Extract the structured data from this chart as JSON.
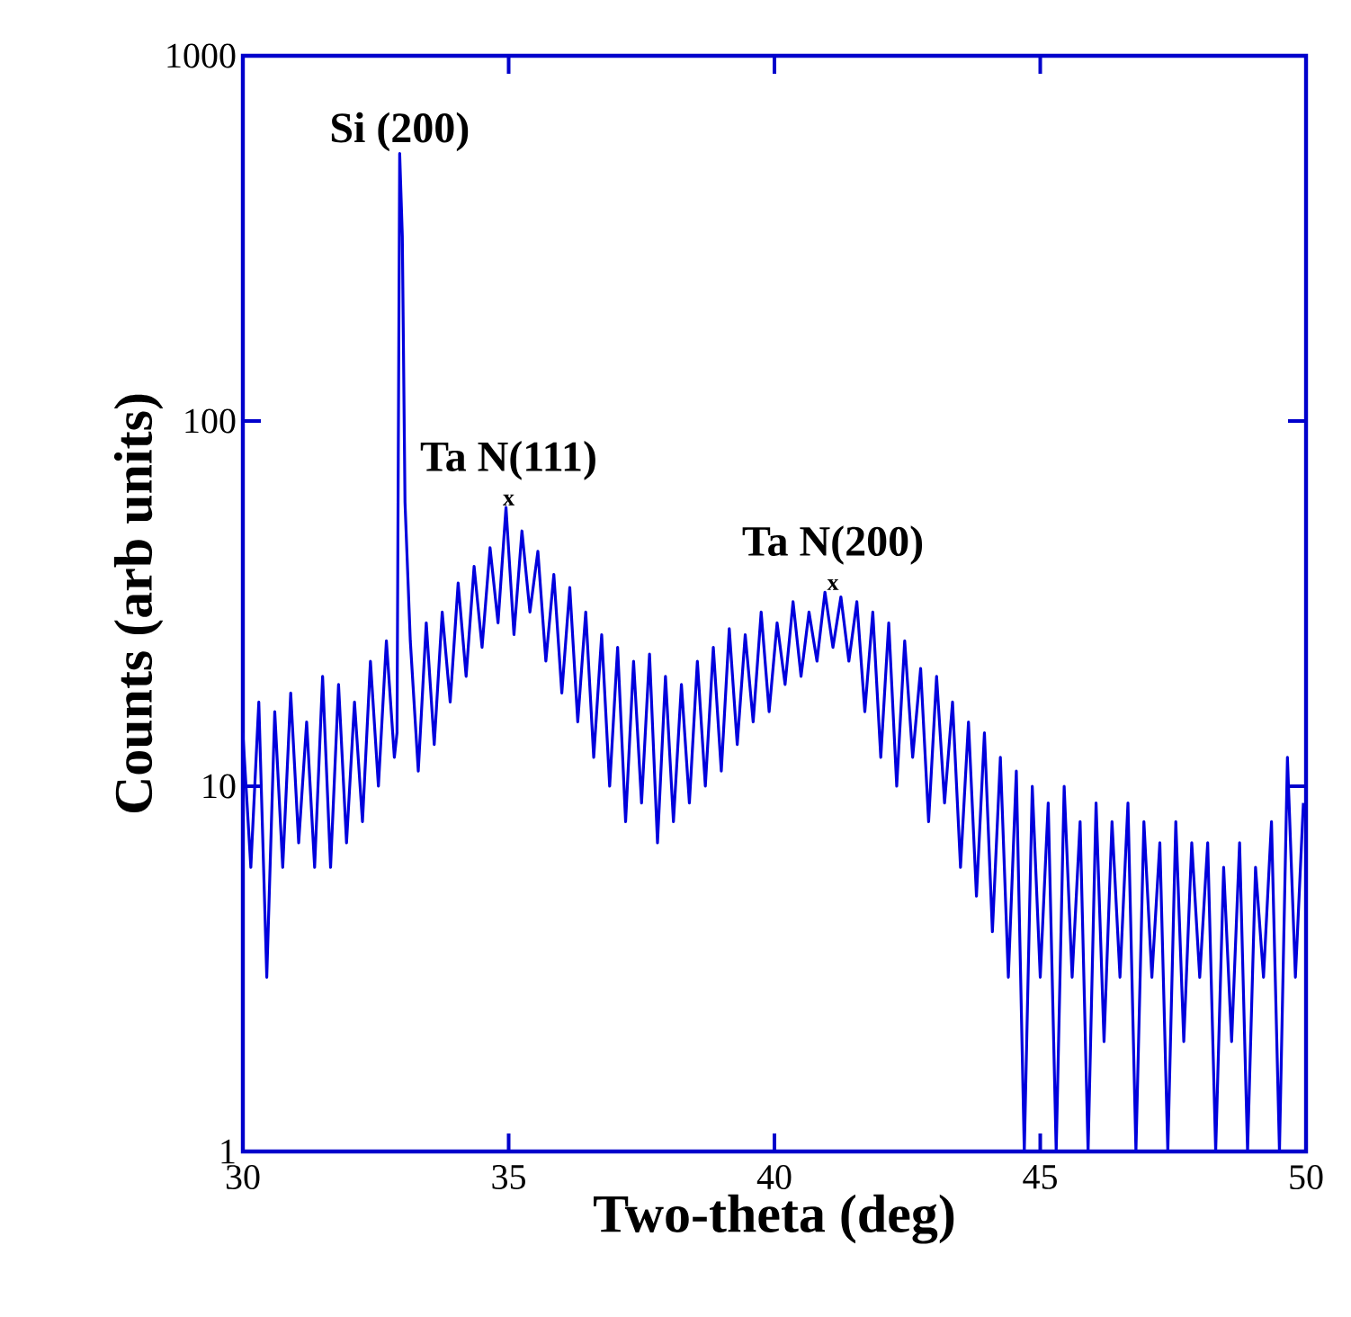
{
  "chart_data": {
    "type": "line",
    "xlabel": "Two-theta (deg)",
    "ylabel": "Counts (arb units)",
    "log": "y",
    "grid": false,
    "marker": "none",
    "line_style": "solid",
    "xlim": [
      30,
      50
    ],
    "xticks": [
      30,
      35,
      40,
      45,
      50
    ],
    "ylim": [
      1,
      1000
    ],
    "yticks": [
      1,
      10,
      100,
      1000
    ],
    "annotations": [
      {
        "text": "Si (200)",
        "x": 32.95,
        "y": 540
      },
      "Ta N(111)",
      {
        "text": "x",
        "x": 35.0,
        "y": 58
      },
      "Ta N(200)",
      {
        "text": "x",
        "x": 41.1,
        "y": 34
      }
    ],
    "series": [
      {
        "color": "#0000dd",
        "x": [
          30.0,
          30.15,
          30.3,
          30.45,
          30.6,
          30.75,
          30.9,
          31.05,
          31.2,
          31.35,
          31.5,
          31.65,
          31.8,
          31.95,
          32.1,
          32.25,
          32.4,
          32.55,
          32.7,
          32.85,
          32.9,
          32.95,
          33.0,
          33.05,
          33.15,
          33.3,
          33.45,
          33.6,
          33.75,
          33.9,
          34.05,
          34.2,
          34.35,
          34.5,
          34.65,
          34.8,
          34.95,
          35.1,
          35.25,
          35.4,
          35.55,
          35.7,
          35.85,
          36.0,
          36.15,
          36.3,
          36.45,
          36.6,
          36.75,
          36.9,
          37.05,
          37.2,
          37.35,
          37.5,
          37.65,
          37.8,
          37.95,
          38.1,
          38.25,
          38.4,
          38.55,
          38.7,
          38.85,
          39.0,
          39.15,
          39.3,
          39.45,
          39.6,
          39.75,
          39.9,
          40.05,
          40.2,
          40.35,
          40.5,
          40.65,
          40.8,
          40.95,
          41.1,
          41.25,
          41.4,
          41.55,
          41.7,
          41.85,
          42.0,
          42.15,
          42.3,
          42.45,
          42.6,
          42.75,
          42.9,
          43.05,
          43.2,
          43.35,
          43.5,
          43.65,
          43.8,
          43.95,
          44.1,
          44.25,
          44.4,
          44.55,
          44.7,
          44.85,
          45.0,
          45.15,
          45.3,
          45.45,
          45.6,
          45.75,
          45.9,
          46.05,
          46.2,
          46.35,
          46.5,
          46.65,
          46.8,
          46.95,
          47.1,
          47.25,
          47.4,
          47.55,
          47.7,
          47.85,
          48.0,
          48.15,
          48.3,
          48.45,
          48.6,
          48.75,
          48.9,
          49.05,
          49.2,
          49.35,
          49.5,
          49.65,
          49.8,
          49.95
        ],
        "values": [
          14,
          6,
          17,
          3,
          16,
          6,
          18,
          7,
          15,
          6,
          20,
          6,
          19,
          7,
          17,
          8,
          22,
          10,
          25,
          12,
          14,
          540,
          320,
          60,
          25,
          11,
          28,
          13,
          30,
          17,
          36,
          20,
          40,
          24,
          45,
          28,
          58,
          26,
          50,
          30,
          44,
          22,
          38,
          18,
          35,
          15,
          30,
          12,
          26,
          10,
          24,
          8,
          22,
          9,
          23,
          7,
          20,
          8,
          19,
          9,
          22,
          10,
          24,
          11,
          27,
          13,
          26,
          15,
          30,
          16,
          28,
          19,
          32,
          20,
          30,
          22,
          34,
          24,
          33,
          22,
          32,
          16,
          30,
          12,
          28,
          10,
          25,
          12,
          21,
          8,
          20,
          9,
          17,
          6,
          15,
          5,
          14,
          4,
          12,
          3,
          11,
          1,
          10,
          3,
          9,
          1,
          10,
          3,
          8,
          1,
          9,
          2,
          8,
          3,
          9,
          1,
          8,
          3,
          7,
          1,
          8,
          2,
          7,
          3,
          7,
          1,
          6,
          2,
          7,
          1,
          6,
          3,
          8,
          1,
          12,
          3,
          9
        ]
      }
    ]
  }
}
